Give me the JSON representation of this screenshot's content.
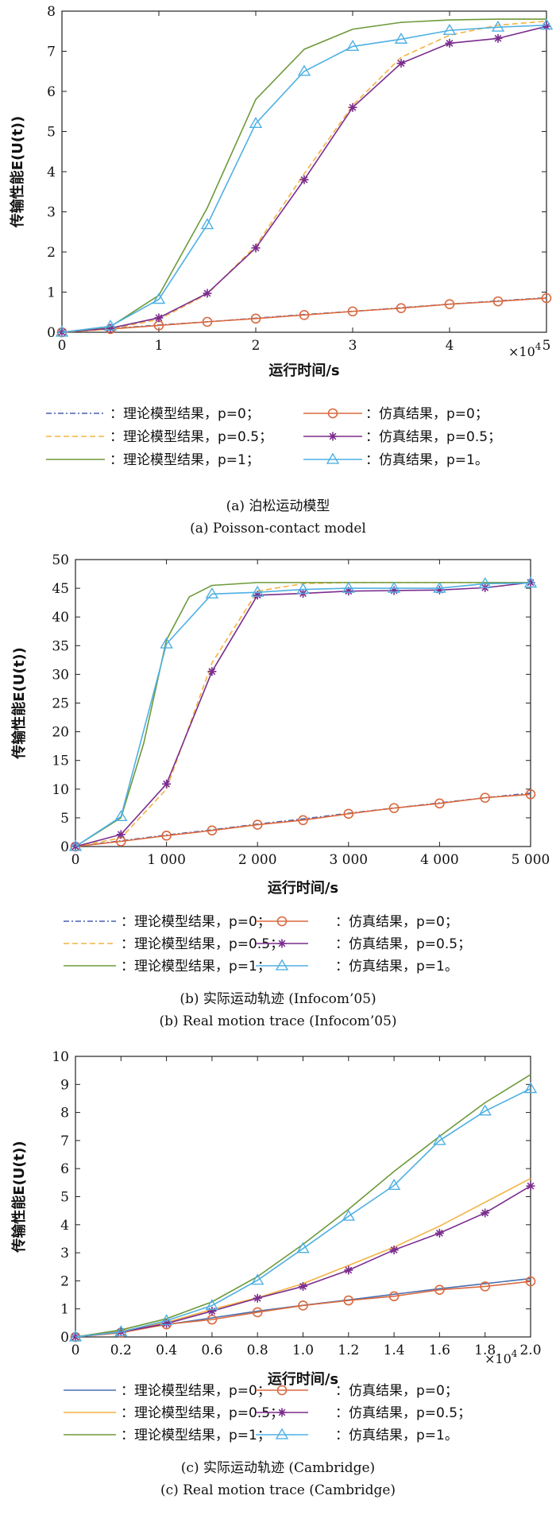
{
  "chart_data": [
    {
      "type": "line",
      "xlabel": "运行时间/s",
      "ylabel": "传输性能E(U(t))",
      "x_multiplier": "×10",
      "x_multiplier_exp": "4",
      "xlim": [
        0,
        5
      ],
      "ylim": [
        0,
        8
      ],
      "xticks": [
        0,
        1,
        2,
        3,
        4,
        5
      ],
      "xtick_labels": [
        "0",
        "1",
        "2",
        "3",
        "4",
        "5"
      ],
      "yticks": [
        0,
        1,
        2,
        3,
        4,
        5,
        6,
        7,
        8
      ],
      "ytick_labels": [
        "0",
        "1",
        "2",
        "3",
        "4",
        "5",
        "6",
        "7",
        "8"
      ],
      "series": [
        {
          "name": "：理论模型结果，p=0；",
          "color": "#4a5fb0",
          "dash": "dashdot",
          "marker": "none",
          "x": [
            0,
            0.5,
            1,
            1.5,
            2,
            2.5,
            3,
            3.5,
            4,
            4.5,
            5
          ],
          "y": [
            0,
            0.09,
            0.18,
            0.26,
            0.35,
            0.44,
            0.52,
            0.61,
            0.7,
            0.78,
            0.86
          ]
        },
        {
          "name": "：仿真结果，p=0；",
          "color": "#d9693f",
          "dash": "solid",
          "marker": "circle",
          "x": [
            0,
            0.5,
            1,
            1.5,
            2,
            2.5,
            3,
            3.5,
            4,
            4.5,
            5
          ],
          "y": [
            0,
            0.08,
            0.17,
            0.26,
            0.34,
            0.43,
            0.52,
            0.6,
            0.7,
            0.77,
            0.85
          ]
        },
        {
          "name": "：理论模型结果，p=0.5；",
          "color": "#f4b342",
          "dash": "dashed",
          "marker": "none",
          "x": [
            0,
            0.5,
            1,
            1.5,
            2,
            2.5,
            3,
            3.5,
            4,
            4.5,
            5
          ],
          "y": [
            0,
            0.08,
            0.32,
            0.95,
            2.15,
            3.95,
            5.65,
            6.85,
            7.4,
            7.65,
            7.75
          ]
        },
        {
          "name": "：仿真结果，p=0.5；",
          "color": "#7b2d8e",
          "dash": "solid",
          "marker": "star",
          "x": [
            0,
            0.5,
            1,
            1.5,
            2,
            2.5,
            3,
            3.5,
            4,
            4.5,
            5
          ],
          "y": [
            0,
            0.1,
            0.36,
            0.97,
            2.1,
            3.8,
            5.6,
            6.7,
            7.2,
            7.32,
            7.62
          ]
        },
        {
          "name": "：理论模型结果，p=1；",
          "color": "#6e9a3a",
          "dash": "solid",
          "marker": "none",
          "x": [
            0,
            0.5,
            1,
            1.5,
            2,
            2.5,
            3,
            3.5,
            4,
            4.5,
            5
          ],
          "y": [
            0,
            0.14,
            0.92,
            3.1,
            5.8,
            7.05,
            7.55,
            7.72,
            7.78,
            7.8,
            7.8
          ]
        },
        {
          "name": "：仿真结果，p=1。",
          "color": "#4fb0e3",
          "dash": "solid",
          "marker": "triangle",
          "x": [
            0,
            0.5,
            1,
            1.5,
            2,
            2.5,
            3,
            3.5,
            4,
            4.5,
            5
          ],
          "y": [
            0,
            0.15,
            0.82,
            2.68,
            5.2,
            6.5,
            7.12,
            7.3,
            7.52,
            7.6,
            7.65
          ]
        }
      ],
      "caption_cn": "(a) 泊松运动模型",
      "caption_en": "(a) Poisson-contact model"
    },
    {
      "type": "line",
      "xlabel": "运行时间/s",
      "ylabel": "传输性能E(U(t))",
      "x_multiplier": "",
      "x_multiplier_exp": "",
      "xlim": [
        0,
        5000
      ],
      "ylim": [
        0,
        50
      ],
      "xticks": [
        0,
        1000,
        2000,
        3000,
        4000,
        5000
      ],
      "xtick_labels": [
        "0",
        "1 000",
        "2 000",
        "3 000",
        "4 000",
        "5 000"
      ],
      "yticks": [
        0,
        5,
        10,
        15,
        20,
        25,
        30,
        35,
        40,
        45,
        50
      ],
      "ytick_labels": [
        "0",
        "5",
        "10",
        "15",
        "20",
        "25",
        "30",
        "35",
        "40",
        "45",
        "50"
      ],
      "series": [
        {
          "name": "：理论模型结果，p=0；",
          "color": "#4a5fb0",
          "dash": "dashdot",
          "marker": "none",
          "x": [
            0,
            500,
            1000,
            1500,
            2000,
            2500,
            3000,
            3500,
            4000,
            4500,
            5000
          ],
          "y": [
            0,
            1.0,
            2.0,
            2.9,
            3.9,
            4.8,
            5.8,
            6.7,
            7.6,
            8.5,
            9.3
          ]
        },
        {
          "name": "：仿真结果，p=0；",
          "color": "#d9693f",
          "dash": "solid",
          "marker": "circle",
          "x": [
            0,
            500,
            1000,
            1500,
            2000,
            2500,
            3000,
            3500,
            4000,
            4500,
            5000
          ],
          "y": [
            0,
            0.9,
            1.9,
            2.8,
            3.8,
            4.6,
            5.7,
            6.7,
            7.5,
            8.5,
            9.1
          ]
        },
        {
          "name": "：理论模型结果，p=0.5；",
          "color": "#f4b342",
          "dash": "dashed",
          "marker": "none",
          "x": [
            0,
            500,
            1000,
            1500,
            2000,
            2500,
            3000,
            3500,
            4000,
            4500,
            5000
          ],
          "y": [
            0,
            1.5,
            10.0,
            32.0,
            44.5,
            45.8,
            46.0,
            46.0,
            46.0,
            46.0,
            46.0
          ]
        },
        {
          "name": "：仿真结果，p=0.5；",
          "color": "#7b2d8e",
          "dash": "solid",
          "marker": "star",
          "x": [
            0,
            500,
            1000,
            1500,
            2000,
            2500,
            3000,
            3500,
            4000,
            4500,
            5000
          ],
          "y": [
            0,
            2.1,
            10.9,
            30.5,
            43.8,
            44.1,
            44.5,
            44.6,
            44.7,
            45.1,
            46.0
          ]
        },
        {
          "name": "：理论模型结果，p=1；",
          "color": "#6e9a3a",
          "dash": "solid",
          "marker": "none",
          "x": [
            0,
            500,
            750,
            1000,
            1250,
            1500,
            2000,
            2500,
            3000,
            3500,
            4000,
            4500,
            5000
          ],
          "y": [
            0,
            5.0,
            18.0,
            36.0,
            43.5,
            45.5,
            46.0,
            46.0,
            46.0,
            46.0,
            46.0,
            46.0,
            46.0
          ]
        },
        {
          "name": "：仿真结果，p=1。",
          "color": "#4fb0e3",
          "dash": "solid",
          "marker": "triangle",
          "x": [
            0,
            500,
            1000,
            1500,
            2000,
            2500,
            3000,
            3500,
            4000,
            4500,
            5000
          ],
          "y": [
            0,
            5.2,
            35.3,
            44.0,
            44.3,
            44.8,
            45.0,
            45.0,
            45.0,
            45.8,
            45.9
          ]
        }
      ],
      "caption_cn": "(b) 实际运动轨迹 (Infocom’05)",
      "caption_en": "(b) Real motion trace (Infocom’05)"
    },
    {
      "type": "line",
      "xlabel": "运行时间/s",
      "ylabel": "传输性能E(U(t))",
      "x_multiplier": "×10",
      "x_multiplier_exp": "4",
      "xlim": [
        0,
        2.0
      ],
      "ylim": [
        0,
        10
      ],
      "xticks": [
        0,
        0.2,
        0.4,
        0.6,
        0.8,
        1.0,
        1.2,
        1.4,
        1.6,
        1.8,
        2.0
      ],
      "xtick_labels": [
        "0",
        "0.2",
        "0.4",
        "0.6",
        "0.8",
        "1.0",
        "1.2",
        "1.4",
        "1.6",
        "1.8",
        "2.0"
      ],
      "yticks": [
        0,
        1,
        2,
        3,
        4,
        5,
        6,
        7,
        8,
        9,
        10
      ],
      "ytick_labels": [
        "0",
        "1",
        "2",
        "3",
        "4",
        "5",
        "6",
        "7",
        "8",
        "9",
        "10"
      ],
      "series": [
        {
          "name": "：理论模型结果，p=0；",
          "color": "#4a6fb0",
          "dash": "solid",
          "marker": "none",
          "x": [
            0,
            0.2,
            0.4,
            0.6,
            0.8,
            1.0,
            1.2,
            1.4,
            1.6,
            1.8,
            2.0
          ],
          "y": [
            0,
            0.2,
            0.44,
            0.68,
            0.92,
            1.13,
            1.32,
            1.52,
            1.72,
            1.9,
            2.08
          ]
        },
        {
          "name": "：仿真结果，p=0；",
          "color": "#d9693f",
          "dash": "solid",
          "marker": "circle",
          "x": [
            0,
            0.2,
            0.4,
            0.6,
            0.8,
            1.0,
            1.2,
            1.4,
            1.6,
            1.8,
            2.0
          ],
          "y": [
            0,
            0.15,
            0.45,
            0.62,
            0.88,
            1.12,
            1.3,
            1.45,
            1.68,
            1.8,
            1.98
          ]
        },
        {
          "name": "：理论模型结果，p=0.5；",
          "color": "#f4b342",
          "dash": "solid",
          "marker": "none",
          "x": [
            0,
            0.2,
            0.4,
            0.6,
            0.8,
            1.0,
            1.2,
            1.4,
            1.6,
            1.8,
            2.0
          ],
          "y": [
            0,
            0.2,
            0.52,
            0.98,
            1.4,
            1.9,
            2.55,
            3.2,
            3.95,
            4.8,
            5.65
          ]
        },
        {
          "name": "：仿真结果，p=0.5；",
          "color": "#7b2d8e",
          "dash": "solid",
          "marker": "star",
          "x": [
            0,
            0.2,
            0.4,
            0.6,
            0.8,
            1.0,
            1.2,
            1.4,
            1.6,
            1.8,
            2.0
          ],
          "y": [
            0,
            0.18,
            0.48,
            0.92,
            1.38,
            1.8,
            2.38,
            3.1,
            3.7,
            4.42,
            5.38
          ]
        },
        {
          "name": "：理论模型结果，p=1；",
          "color": "#6e9a3a",
          "dash": "solid",
          "marker": "none",
          "x": [
            0,
            0.2,
            0.4,
            0.6,
            0.8,
            1.0,
            1.2,
            1.4,
            1.6,
            1.8,
            2.0
          ],
          "y": [
            0,
            0.25,
            0.65,
            1.25,
            2.15,
            3.3,
            4.55,
            5.9,
            7.15,
            8.35,
            9.35
          ]
        },
        {
          "name": "：仿真结果，p=1。",
          "color": "#4fb0e3",
          "dash": "solid",
          "marker": "triangle",
          "x": [
            0,
            0.2,
            0.4,
            0.6,
            0.8,
            1.0,
            1.2,
            1.4,
            1.6,
            1.8,
            2.0
          ],
          "y": [
            0,
            0.18,
            0.58,
            1.12,
            2.02,
            3.15,
            4.3,
            5.4,
            7.0,
            8.05,
            8.85
          ]
        }
      ],
      "caption_cn": "(c) 实际运动轨迹 (Cambridge)",
      "caption_en": "(c) Real motion trace (Cambridge)"
    }
  ]
}
